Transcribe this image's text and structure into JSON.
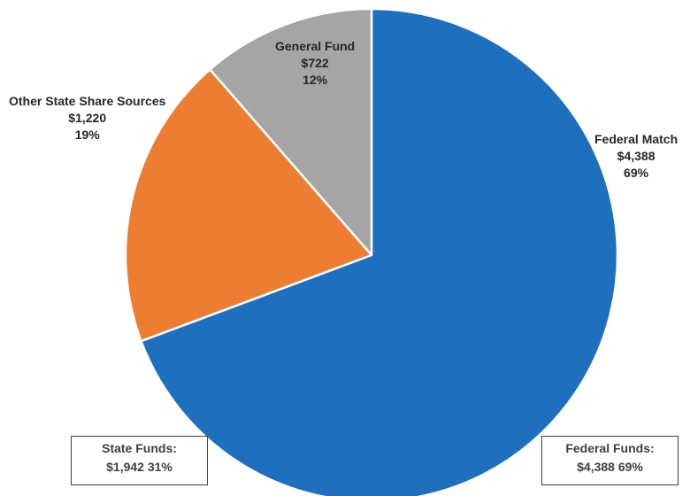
{
  "chart_data": {
    "type": "pie",
    "slices": [
      {
        "name": "Federal Match",
        "value": 4388,
        "value_label": "$4,388",
        "percent_label": "69%",
        "color": "#1f6fbf"
      },
      {
        "name": "Other State Share Sources",
        "value": 1220,
        "value_label": "$1,220",
        "percent_label": "19%",
        "color": "#ed7d31"
      },
      {
        "name": "General Fund",
        "value": 722,
        "value_label": "$722",
        "percent_label": "12%",
        "color": "#a5a5a5"
      }
    ],
    "start_angle_deg": 0,
    "direction": "clockwise",
    "slice_border_color": "#ffffff"
  },
  "summary": {
    "state": {
      "title": "State Funds:",
      "value": "$1,942 31%"
    },
    "federal": {
      "title": "Federal Funds:",
      "value": "$4,388 69%"
    }
  }
}
